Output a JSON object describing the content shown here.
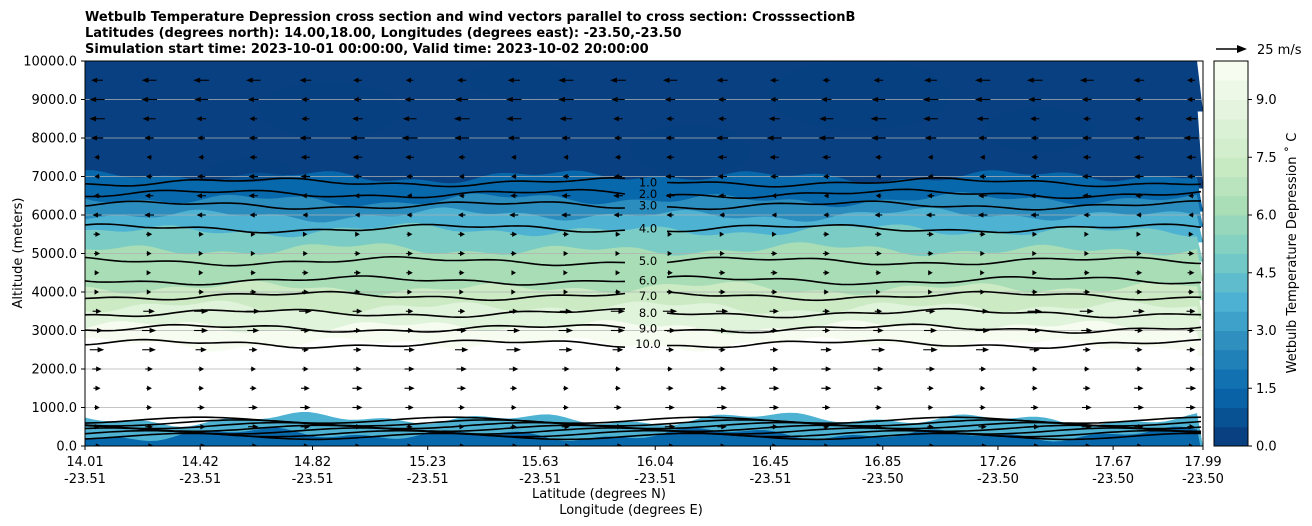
{
  "chart_data": {
    "type": "heatmap",
    "title_lines": [
      "Wetbulb Temperature Depression cross section and wind vectors parallel to cross section: CrosssectionB",
      "Latitudes (degrees north): 14.00,18.00, Longitudes (degrees east): -23.50,-23.50",
      "Simulation start time: 2023-10-01 00:00:00, Valid time: 2023-10-02 20:00:00"
    ],
    "ylabel": "Altitude (meters)",
    "xlabel_lat": "Latitude (degrees N)",
    "xlabel_lon": "Longitude (degrees E)",
    "ylim": [
      0,
      10000
    ],
    "yticks": [
      "10000.0",
      "9000.0",
      "8000.0",
      "7000.0",
      "6000.0",
      "5000.0",
      "4000.0",
      "3000.0",
      "2000.0",
      "1000.0",
      "0.0"
    ],
    "ytick_values": [
      10000,
      9000,
      8000,
      7000,
      6000,
      5000,
      4000,
      3000,
      2000,
      1000,
      0
    ],
    "xticks_lat": [
      "14.01",
      "14.42",
      "14.82",
      "15.23",
      "15.63",
      "16.04",
      "16.45",
      "16.85",
      "17.26",
      "17.67",
      "17.99"
    ],
    "xticks_lon": [
      "-23.51",
      "-23.51",
      "-23.51",
      "-23.51",
      "-23.51",
      "-23.51",
      "-23.51",
      "-23.50",
      "-23.50",
      "-23.50",
      "-23.50"
    ],
    "xtick_values": [
      14.01,
      14.42,
      14.82,
      15.23,
      15.63,
      16.04,
      16.45,
      16.85,
      17.26,
      17.67,
      17.99
    ],
    "xlim": [
      14.01,
      17.99
    ],
    "colorbar_label": "Wetbulb Temperature Depression ˚ C",
    "colorbar_range": [
      0,
      10
    ],
    "colorbar_ticks": [
      "0.0",
      "1.5",
      "3.0",
      "4.5",
      "6.0",
      "7.5",
      "9.0"
    ],
    "colorbar_tick_values": [
      0,
      1.5,
      3.0,
      4.5,
      6.0,
      7.5,
      9.0
    ],
    "colorbar_colors": [
      "#084081",
      "#0868ac",
      "#2b8cbe",
      "#4eb3d3",
      "#7bccc4",
      "#a8ddb5",
      "#ccebc5",
      "#e0f3db",
      "#f7fcf0"
    ],
    "quiver_key": "25 m/s",
    "contour_labels": [
      "1.0",
      "2.0",
      "3.0",
      "4.0",
      "5.0",
      "6.0",
      "7.0",
      "8.0",
      "9.0",
      "10.0"
    ],
    "contours": [
      {
        "label": "1.0",
        "value": 1.0,
        "altitude": 6850
      },
      {
        "label": "2.0",
        "value": 2.0,
        "altitude": 6550
      },
      {
        "label": "3.0",
        "value": 3.0,
        "altitude": 6250
      },
      {
        "label": "4.0",
        "value": 4.0,
        "altitude": 5650
      },
      {
        "label": "5.0",
        "value": 5.0,
        "altitude": 4800
      },
      {
        "label": "6.0",
        "value": 6.0,
        "altitude": 4300
      },
      {
        "label": "7.0",
        "value": 7.0,
        "altitude": 3900
      },
      {
        "label": "8.0",
        "value": 8.0,
        "altitude": 3450
      },
      {
        "label": "9.0",
        "value": 9.0,
        "altitude": 3050
      },
      {
        "label": "10.0",
        "value": 10.0,
        "altitude": 2650
      }
    ],
    "fill_layers": [
      {
        "from": 9000,
        "to": 10000,
        "value": 0.3
      },
      {
        "from": 7000,
        "to": 9000,
        "value": 0.2
      },
      {
        "from": 6400,
        "to": 7000,
        "value": 1.2
      },
      {
        "from": 6000,
        "to": 6400,
        "value": 2.4
      },
      {
        "from": 5600,
        "to": 6000,
        "value": 3.6
      },
      {
        "from": 5100,
        "to": 5600,
        "value": 4.8
      },
      {
        "from": 4600,
        "to": 5100,
        "value": 5.6
      },
      {
        "from": 4100,
        "to": 4600,
        "value": 6.4
      },
      {
        "from": 3600,
        "to": 4100,
        "value": 7.2
      },
      {
        "from": 3100,
        "to": 3600,
        "value": 8.2
      },
      {
        "from": 2650,
        "to": 3100,
        "value": 9.2
      },
      {
        "from": 700,
        "to": 2650,
        "value": 11.0
      },
      {
        "from": 300,
        "to": 700,
        "value": 3.5
      },
      {
        "from": 0,
        "to": 300,
        "value": 1.6
      }
    ]
  }
}
